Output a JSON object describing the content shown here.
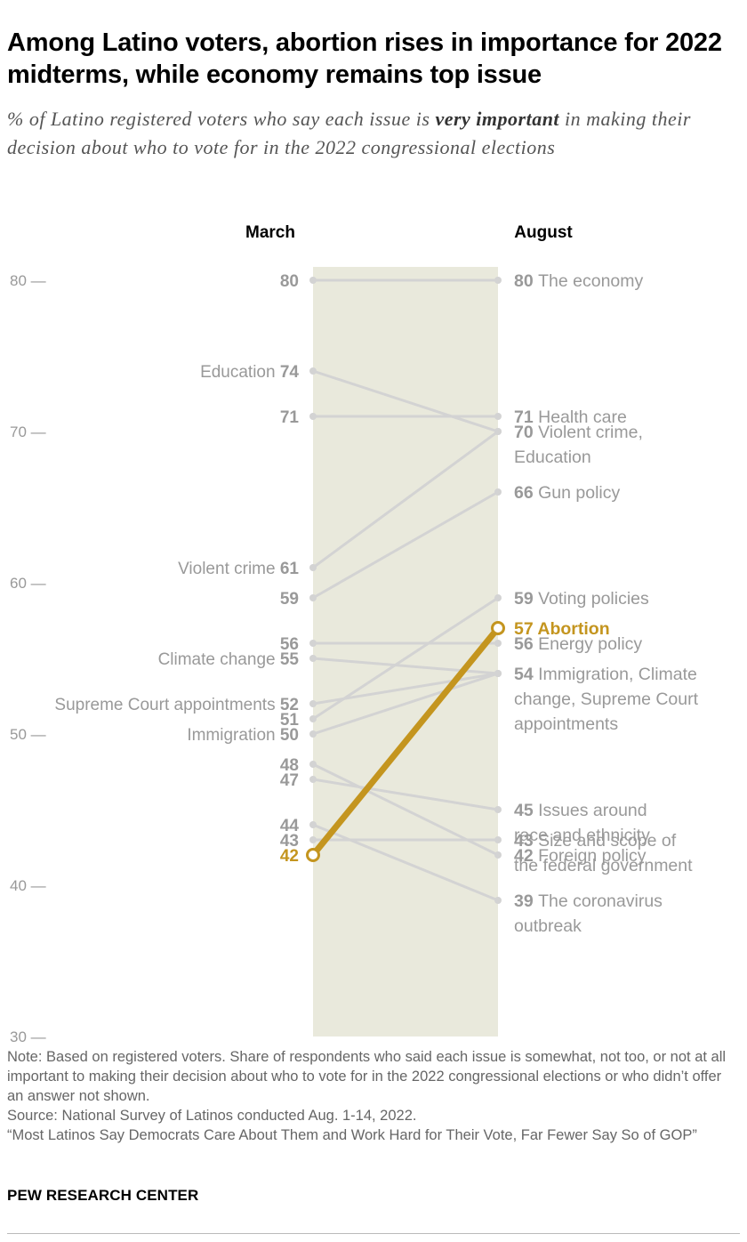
{
  "title": "Among Latino voters, abortion rises in importance for 2022 midterms, while economy remains top issue",
  "subtitle": {
    "before": "% of Latino registered voters who say each issue is ",
    "emphasis": "very important",
    "after": " in making their decision about who to vote for in the 2022 congressional elections"
  },
  "colors": {
    "highlight": "#c4951f",
    "line": "#d3d3d3",
    "label": "#999999",
    "band": "#e9e9dc",
    "axis": "#999999"
  },
  "chart_data": {
    "type": "slope",
    "columns": [
      "March",
      "August"
    ],
    "y_axis": {
      "range": [
        30,
        80
      ],
      "ticks": [
        80,
        70,
        60,
        50,
        40,
        30
      ]
    },
    "highlight_series": "Abortion",
    "series": [
      {
        "name": "The economy",
        "march": 80,
        "august": 80
      },
      {
        "name": "Education",
        "march": 74,
        "august": 70
      },
      {
        "name": "Health care",
        "march": 71,
        "august": 71
      },
      {
        "name": "Violent crime",
        "march": 61,
        "august": 70
      },
      {
        "name": "Gun policy",
        "march": 59,
        "august": 66
      },
      {
        "name": "Energy policy",
        "march": 56,
        "august": 56
      },
      {
        "name": "Climate change",
        "march": 55,
        "august": 54
      },
      {
        "name": "Supreme Court appointments",
        "march": 52,
        "august": 54
      },
      {
        "name": "Voting policies",
        "march": 51,
        "august": 59
      },
      {
        "name": "Immigration",
        "march": 50,
        "august": 54
      },
      {
        "name": "Foreign policy",
        "march": 48,
        "august": 42
      },
      {
        "name": "Issues around race and ethnicity",
        "march": 47,
        "august": 45
      },
      {
        "name": "The coronavirus outbreak",
        "march": 44,
        "august": 39
      },
      {
        "name": "Size and scope of the federal government",
        "march": 43,
        "august": 43
      },
      {
        "name": "Abortion",
        "march": 42,
        "august": 57
      }
    ],
    "march_labels": [
      {
        "value": 80,
        "name": ""
      },
      {
        "value": 74,
        "name": "Education"
      },
      {
        "value": 71,
        "name": ""
      },
      {
        "value": 61,
        "name": "Violent crime"
      },
      {
        "value": 59,
        "name": ""
      },
      {
        "value": 56,
        "name": ""
      },
      {
        "value": 55,
        "name": "Climate change"
      },
      {
        "value": 52,
        "name": "Supreme Court appointments"
      },
      {
        "value": 51,
        "name": ""
      },
      {
        "value": 50,
        "name": "Immigration"
      },
      {
        "value": 48,
        "name": ""
      },
      {
        "value": 47,
        "name": ""
      },
      {
        "value": 44,
        "name": ""
      },
      {
        "value": 43,
        "name": ""
      },
      {
        "value": 42,
        "name": "",
        "highlight": true
      }
    ],
    "august_labels": [
      {
        "value": 80,
        "lines": [
          "The economy"
        ]
      },
      {
        "value": 71,
        "lines": [
          "Health care"
        ]
      },
      {
        "value": 70,
        "lines": [
          "Violent crime,",
          "Education"
        ]
      },
      {
        "value": 66,
        "lines": [
          "Gun policy"
        ]
      },
      {
        "value": 59,
        "lines": [
          "Voting policies"
        ]
      },
      {
        "value": 57,
        "lines": [
          "Abortion"
        ],
        "highlight": true
      },
      {
        "value": 56,
        "lines": [
          "Energy policy"
        ]
      },
      {
        "value": 54,
        "lines": [
          "Immigration, Climate",
          "change, Supreme Court",
          "appointments"
        ]
      },
      {
        "value": 45,
        "lines": [
          "Issues around",
          "race and ethnicity"
        ]
      },
      {
        "value": 43,
        "lines": [
          "Size and scope of",
          "the federal government"
        ]
      },
      {
        "value": 42,
        "lines": [
          "Foreign policy"
        ]
      },
      {
        "value": 39,
        "lines": [
          "The coronavirus",
          "outbreak"
        ]
      }
    ]
  },
  "notes": {
    "note": "Note:  Based on registered voters. Share of respondents who said each issue is somewhat, not too, or not at all important to making their decision about who to vote for in the 2022 congressional elections or who didn’t offer an answer not shown.",
    "source": "Source: National Survey of Latinos conducted Aug. 1-14, 2022.",
    "report": "“Most Latinos Say Democrats Care About Them and Work Hard for Their Vote, Far Fewer Say So of GOP”"
  },
  "brand": "PEW RESEARCH CENTER"
}
